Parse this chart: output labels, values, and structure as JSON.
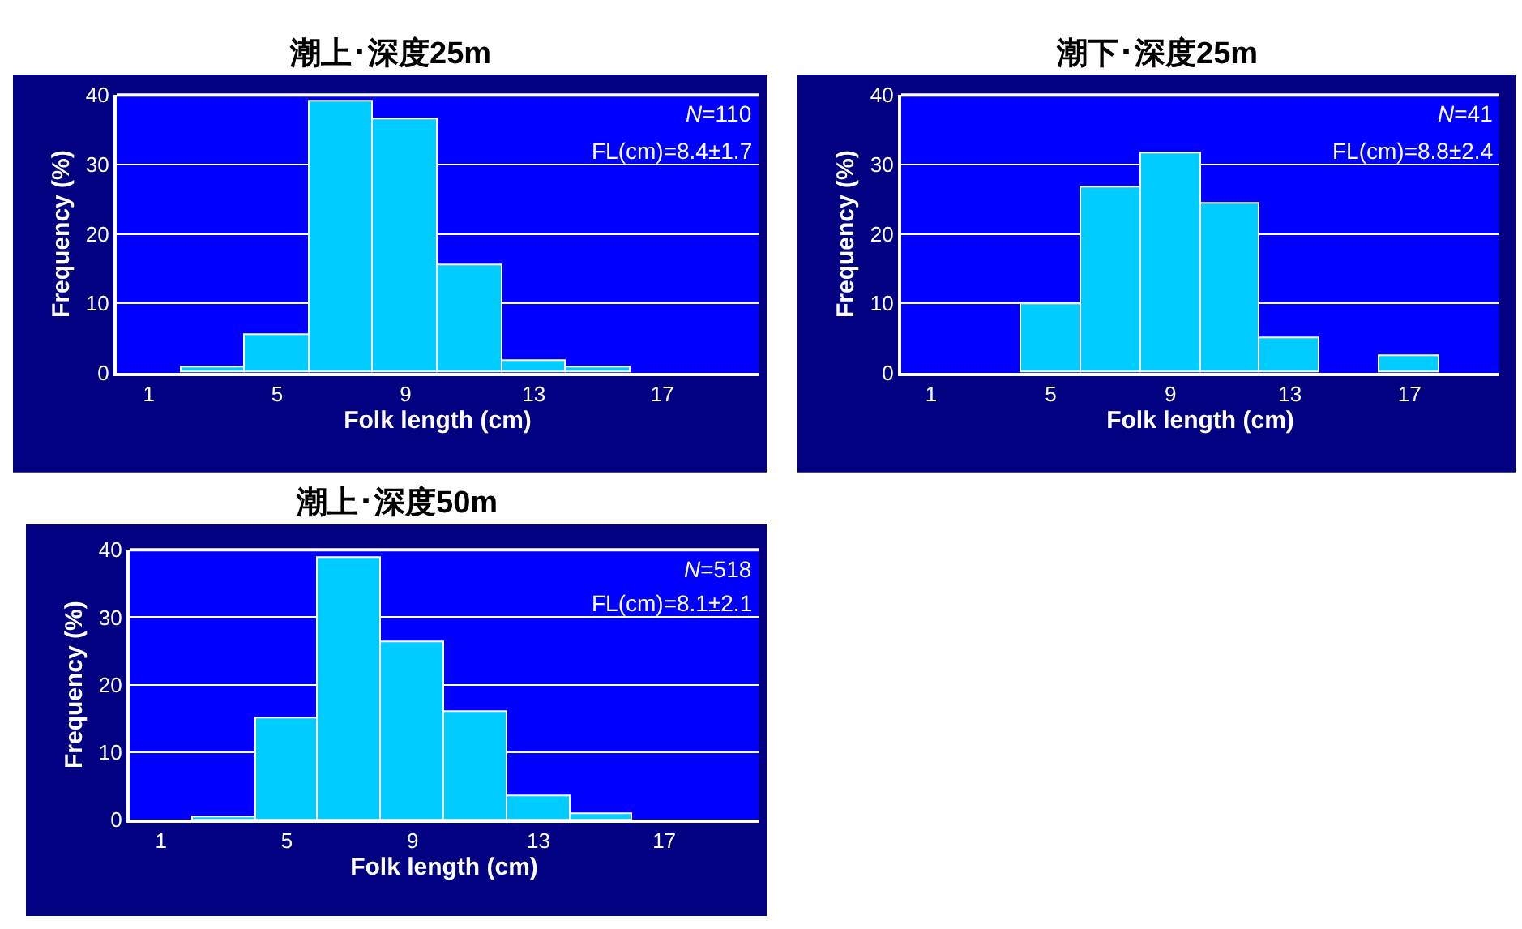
{
  "chart_data": [
    {
      "type": "histogram",
      "title": "潮上･深度25m",
      "xlabel": "Folk length (cm)",
      "ylabel": "Frequency (%)",
      "bins": [
        0,
        2,
        4,
        6,
        8,
        10,
        12,
        14,
        16,
        18,
        20
      ],
      "values": [
        0,
        0.9,
        5.5,
        39.1,
        36.4,
        15.5,
        1.8,
        0.9,
        0,
        0
      ],
      "color": "#00ccff",
      "xlim": [
        0,
        20
      ],
      "xticks": [
        1,
        5,
        9,
        13,
        17
      ],
      "ylim": [
        0,
        40
      ],
      "yticks": [
        0,
        10,
        20,
        30,
        40
      ],
      "grid": "y",
      "annotations": [
        "N=110",
        "FL(cm)=8.4±1.7"
      ]
    },
    {
      "type": "histogram",
      "title": "潮下･深度25m",
      "xlabel": "Folk length (cm)",
      "ylabel": "Frequency (%)",
      "bins": [
        0,
        2,
        4,
        6,
        8,
        10,
        12,
        14,
        16,
        18,
        20
      ],
      "values": [
        0,
        0,
        9.8,
        26.8,
        31.7,
        24.4,
        4.9,
        0,
        2.4,
        0
      ],
      "color": "#00ccff",
      "xlim": [
        0,
        20
      ],
      "xticks": [
        1,
        5,
        9,
        13,
        17
      ],
      "ylim": [
        0,
        40
      ],
      "yticks": [
        0,
        10,
        20,
        30,
        40
      ],
      "grid": "y",
      "annotations": [
        "N=41",
        "FL(cm)=8.8±2.4"
      ]
    },
    {
      "type": "histogram",
      "title": "潮上･深度50m",
      "xlabel": "Folk length (cm)",
      "ylabel": "Frequency (%)",
      "bins": [
        0,
        2,
        4,
        6,
        8,
        10,
        12,
        14,
        16,
        18,
        20
      ],
      "values": [
        0,
        0.4,
        15.1,
        38.9,
        26.2,
        15.9,
        3.5,
        0.9,
        0,
        0
      ],
      "color": "#00ccff",
      "xlim": [
        0,
        20
      ],
      "xticks": [
        1,
        5,
        9,
        13,
        17
      ],
      "ylim": [
        0,
        40
      ],
      "yticks": [
        0,
        10,
        20,
        30,
        40
      ],
      "grid": "y",
      "annotations": [
        "N=518",
        "FL(cm)=8.1±2.1"
      ]
    }
  ]
}
